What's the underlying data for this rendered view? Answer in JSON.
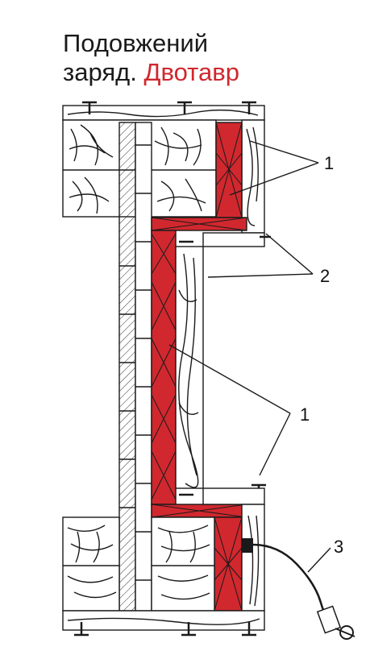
{
  "title": {
    "line1": "Подовжений",
    "line2_prefix": "заряд.",
    "line2_highlight": "Двотавр"
  },
  "callouts": {
    "label_1_top": "1",
    "label_2": "2",
    "label_1_mid": "1",
    "label_3": "3"
  },
  "colors": {
    "charge_red": "#d0282e",
    "line": "#1a1a1a",
    "background": "#ffffff"
  }
}
